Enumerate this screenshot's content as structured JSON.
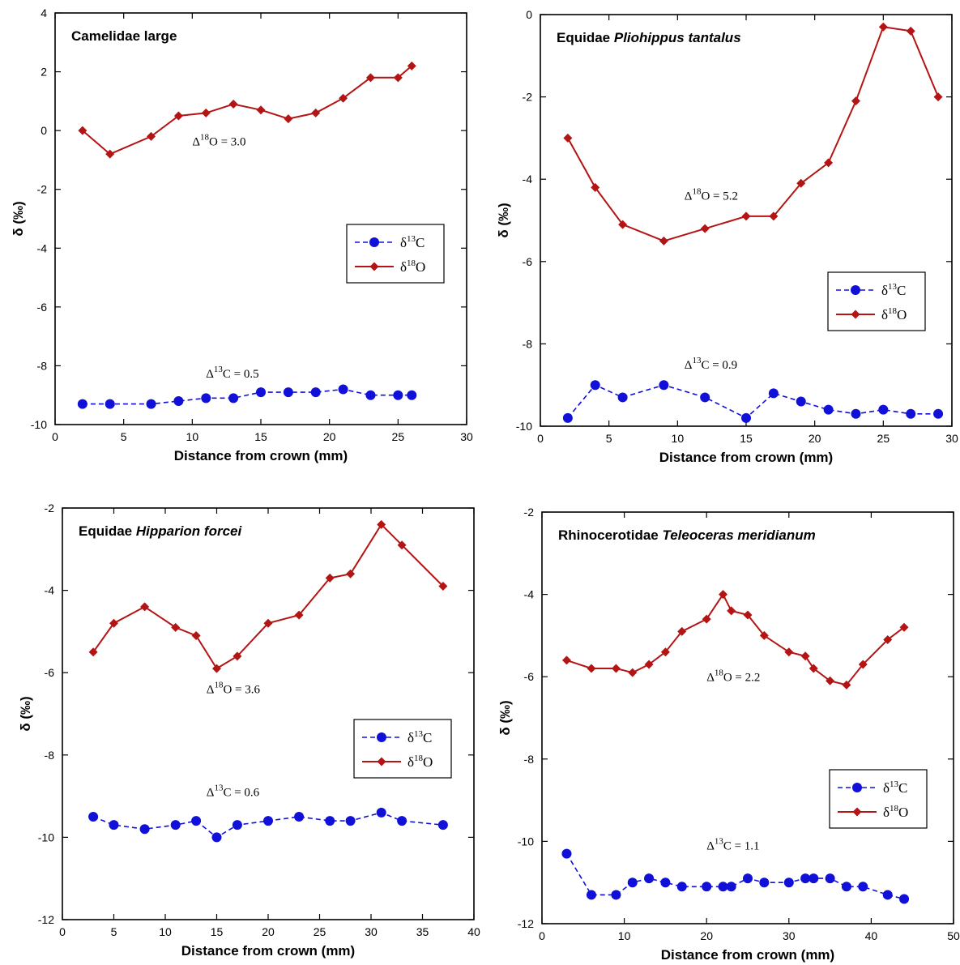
{
  "colors": {
    "d13c": "#1010d8",
    "d18o": "#b41414",
    "frame": "#000000"
  },
  "chart_data": [
    {
      "type": "line",
      "title": "Camelidae large",
      "title_italic": "",
      "xlabel": "Distance from crown (mm)",
      "ylabel": "δ (‰)",
      "xlim": [
        0,
        30
      ],
      "ylim": [
        -10,
        4
      ],
      "xticks": [
        0,
        5,
        10,
        15,
        20,
        25,
        30
      ],
      "yticks": [
        -10,
        -8,
        -6,
        -4,
        -2,
        0,
        2,
        4
      ],
      "legend": {
        "position": "right-middle",
        "entries": [
          "δ13C",
          "δ18O"
        ]
      },
      "series": [
        {
          "name": "δ13C",
          "style": "dashed-circle",
          "x": [
            2,
            4,
            7,
            9,
            11,
            13,
            15,
            17,
            19,
            21,
            23,
            25,
            26
          ],
          "y": [
            -9.3,
            -9.3,
            -9.3,
            -9.2,
            -9.1,
            -9.1,
            -8.9,
            -8.9,
            -8.9,
            -8.8,
            -9.0,
            -9.0,
            -9.0
          ]
        },
        {
          "name": "δ18O",
          "style": "solid-diamond",
          "x": [
            2,
            4,
            7,
            9,
            11,
            13,
            15,
            17,
            19,
            21,
            23,
            25,
            26
          ],
          "y": [
            0.0,
            -0.8,
            -0.2,
            0.5,
            0.6,
            0.9,
            0.7,
            0.4,
            0.6,
            1.1,
            1.8,
            1.8,
            2.2
          ]
        }
      ],
      "annotations": [
        {
          "text": "Δ18O = 3.0",
          "x": 10,
          "y": -0.5
        },
        {
          "text": "Δ13C = 0.5",
          "x": 11,
          "y": -8.4
        }
      ]
    },
    {
      "type": "line",
      "title": "Equidae ",
      "title_italic": "Pliohippus tantalus",
      "xlabel": "Distance from crown (mm)",
      "ylabel": "δ (‰)",
      "xlim": [
        0,
        30
      ],
      "ylim": [
        -10,
        0
      ],
      "xticks": [
        0,
        5,
        10,
        15,
        20,
        25,
        30
      ],
      "yticks": [
        -10,
        -8,
        -6,
        -4,
        -2,
        0
      ],
      "legend": {
        "position": "right-lower",
        "entries": [
          "δ13C",
          "δ18O"
        ]
      },
      "series": [
        {
          "name": "δ13C",
          "style": "dashed-circle",
          "x": [
            2,
            4,
            6,
            9,
            12,
            15,
            17,
            19,
            21,
            23,
            25,
            27,
            29
          ],
          "y": [
            -9.8,
            -9.0,
            -9.3,
            -9.0,
            -9.3,
            -9.8,
            -9.2,
            -9.4,
            -9.6,
            -9.7,
            -9.6,
            -9.7,
            -9.7
          ]
        },
        {
          "name": "δ18O",
          "style": "solid-diamond",
          "x": [
            2,
            4,
            6,
            9,
            12,
            15,
            17,
            19,
            21,
            23,
            25,
            27,
            29
          ],
          "y": [
            -3.0,
            -4.2,
            -5.1,
            -5.5,
            -5.2,
            -4.9,
            -4.9,
            -4.1,
            -3.6,
            -2.1,
            -0.3,
            -0.4,
            -2.0
          ]
        }
      ],
      "annotations": [
        {
          "text": "Δ18O = 5.2",
          "x": 10.5,
          "y": -4.5
        },
        {
          "text": "Δ13C = 0.9",
          "x": 10.5,
          "y": -8.6
        }
      ]
    },
    {
      "type": "line",
      "title": "Equidae ",
      "title_italic": "Hipparion forcei",
      "xlabel": "Distance from crown (mm)",
      "ylabel": "δ (‰)",
      "xlim": [
        0,
        40
      ],
      "ylim": [
        -12,
        -2
      ],
      "xticks": [
        0,
        5,
        10,
        15,
        20,
        25,
        30,
        35,
        40
      ],
      "yticks": [
        -12,
        -10,
        -8,
        -6,
        -4,
        -2
      ],
      "legend": {
        "position": "right-middle",
        "entries": [
          "δ13C",
          "δ18O"
        ]
      },
      "series": [
        {
          "name": "δ13C",
          "style": "dashed-circle",
          "x": [
            3,
            5,
            8,
            11,
            13,
            15,
            17,
            20,
            23,
            26,
            28,
            31,
            33,
            37
          ],
          "y": [
            -9.5,
            -9.7,
            -9.8,
            -9.7,
            -9.6,
            -10.0,
            -9.7,
            -9.6,
            -9.5,
            -9.6,
            -9.6,
            -9.4,
            -9.6,
            -9.7
          ]
        },
        {
          "name": "δ18O",
          "style": "solid-diamond",
          "x": [
            3,
            5,
            8,
            11,
            13,
            15,
            17,
            20,
            23,
            26,
            28,
            31,
            33,
            37
          ],
          "y": [
            -5.5,
            -4.8,
            -4.4,
            -4.9,
            -5.1,
            -5.9,
            -5.6,
            -4.8,
            -4.6,
            -3.7,
            -3.6,
            -2.4,
            -2.9,
            -3.9
          ]
        }
      ],
      "annotations": [
        {
          "text": "Δ18O = 3.6",
          "x": 14,
          "y": -6.5
        },
        {
          "text": "Δ13C = 0.6",
          "x": 14,
          "y": -9.0
        }
      ]
    },
    {
      "type": "line",
      "title": "Rhinocerotidae ",
      "title_italic": "Teleoceras meridianum",
      "xlabel": "Distance from crown (mm)",
      "ylabel": "δ (‰)",
      "xlim": [
        0,
        50
      ],
      "ylim": [
        -12,
        -2
      ],
      "xticks": [
        0,
        10,
        20,
        30,
        40,
        50
      ],
      "yticks": [
        -12,
        -10,
        -8,
        -6,
        -4,
        -2
      ],
      "legend": {
        "position": "right-lower",
        "entries": [
          "δ13C",
          "δ18O"
        ]
      },
      "series": [
        {
          "name": "δ13C",
          "style": "dashed-circle",
          "x": [
            3,
            6,
            9,
            11,
            13,
            15,
            17,
            20,
            22,
            23,
            25,
            27,
            30,
            32,
            33,
            35,
            37,
            39,
            42,
            44
          ],
          "y": [
            -10.3,
            -11.3,
            -11.3,
            -11.0,
            -10.9,
            -11.0,
            -11.1,
            -11.1,
            -11.1,
            -11.1,
            -10.9,
            -11.0,
            -11.0,
            -10.9,
            -10.9,
            -10.9,
            -11.1,
            -11.1,
            -11.3,
            -11.4
          ]
        },
        {
          "name": "δ18O",
          "style": "solid-diamond",
          "x": [
            3,
            6,
            9,
            11,
            13,
            15,
            17,
            20,
            22,
            23,
            25,
            27,
            30,
            32,
            33,
            35,
            37,
            39,
            42,
            44
          ],
          "y": [
            -5.6,
            -5.8,
            -5.8,
            -5.9,
            -5.7,
            -5.4,
            -4.9,
            -4.6,
            -4.0,
            -4.4,
            -4.5,
            -5.0,
            -5.4,
            -5.5,
            -5.8,
            -6.1,
            -6.2,
            -5.7,
            -5.1,
            -4.8
          ]
        }
      ],
      "annotations": [
        {
          "text": "Δ18O = 2.2",
          "x": 20,
          "y": -6.1
        },
        {
          "text": "Δ13C = 1.1",
          "x": 20,
          "y": -10.2
        }
      ]
    }
  ]
}
